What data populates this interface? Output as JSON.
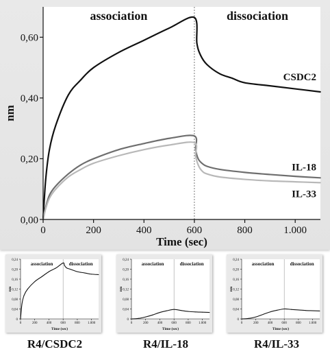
{
  "chart_data": [
    {
      "type": "line",
      "title": "",
      "xlabel": "Time (sec)",
      "ylabel": "nm",
      "xlim": [
        0,
        1100
      ],
      "ylim": [
        0,
        0.7
      ],
      "x_ticks": [
        {
          "value": 0,
          "label": "0"
        },
        {
          "value": 200,
          "label": "200"
        },
        {
          "value": 400,
          "label": "400"
        },
        {
          "value": 600,
          "label": "600"
        },
        {
          "value": 800,
          "label": "800"
        },
        {
          "value": 1000,
          "label": "1.000"
        }
      ],
      "y_ticks": [
        {
          "value": 0,
          "label": "0,00"
        },
        {
          "value": 0.2,
          "label": "0,20"
        },
        {
          "value": 0.4,
          "label": "0,40"
        },
        {
          "value": 0.6,
          "label": "0,60"
        }
      ],
      "phase_divider_x": 600,
      "phase_labels": [
        "association",
        "dissociation"
      ],
      "series": [
        {
          "name": "CSDC2",
          "color": "#111111",
          "x": [
            0,
            10,
            25,
            50,
            100,
            150,
            200,
            300,
            400,
            500,
            600,
            610,
            625,
            650,
            700,
            750,
            800,
            900,
            1000,
            1100
          ],
          "y": [
            0.0,
            0.13,
            0.23,
            0.31,
            0.41,
            0.46,
            0.5,
            0.55,
            0.59,
            0.63,
            0.665,
            0.58,
            0.54,
            0.51,
            0.48,
            0.465,
            0.45,
            0.44,
            0.43,
            0.42
          ]
        },
        {
          "name": "IL-18",
          "color": "#6e6e6e",
          "x": [
            0,
            10,
            25,
            50,
            100,
            150,
            200,
            300,
            400,
            500,
            600,
            605,
            615,
            630,
            650,
            700,
            800,
            900,
            1000,
            1100
          ],
          "y": [
            0.0,
            0.04,
            0.08,
            0.11,
            0.15,
            0.18,
            0.2,
            0.23,
            0.25,
            0.267,
            0.275,
            0.23,
            0.2,
            0.185,
            0.175,
            0.165,
            0.155,
            0.148,
            0.142,
            0.137
          ]
        },
        {
          "name": "IL-33",
          "color": "#b8b8b8",
          "x": [
            0,
            10,
            25,
            50,
            100,
            150,
            200,
            300,
            400,
            500,
            600,
            605,
            615,
            630,
            650,
            700,
            800,
            900,
            1000,
            1100
          ],
          "y": [
            0.0,
            0.035,
            0.07,
            0.1,
            0.14,
            0.165,
            0.185,
            0.21,
            0.23,
            0.245,
            0.253,
            0.21,
            0.18,
            0.16,
            0.15,
            0.14,
            0.132,
            0.127,
            0.124,
            0.121
          ]
        }
      ]
    },
    {
      "type": "line",
      "caption": "R4/CSDC2",
      "xlabel": "Time (sec)",
      "ylabel": "nm",
      "xlim": [
        0,
        1100
      ],
      "ylim": [
        0,
        0.24
      ],
      "x_ticks": [
        {
          "value": 0,
          "label": "0"
        },
        {
          "value": 200,
          "label": "200"
        },
        {
          "value": 400,
          "label": "400"
        },
        {
          "value": 600,
          "label": "600"
        },
        {
          "value": 800,
          "label": "800"
        },
        {
          "value": 1000,
          "label": "1.000"
        }
      ],
      "y_ticks": [
        {
          "value": 0,
          "label": "0"
        },
        {
          "value": 0.04,
          "label": "0,04"
        },
        {
          "value": 0.08,
          "label": "0,08"
        },
        {
          "value": 0.12,
          "label": "0,12"
        },
        {
          "value": 0.16,
          "label": "0,16"
        },
        {
          "value": 0.2,
          "label": "0,20"
        },
        {
          "value": 0.24,
          "label": "0,24"
        }
      ],
      "phase_divider_x": 600,
      "phase_labels": [
        "association",
        "dissociation"
      ],
      "series": [
        {
          "color": "#111111",
          "x": [
            0,
            20,
            50,
            100,
            200,
            300,
            400,
            500,
            600,
            620,
            650,
            700,
            800,
            900,
            1000,
            1100
          ],
          "y": [
            0.0,
            0.06,
            0.095,
            0.12,
            0.15,
            0.17,
            0.19,
            0.205,
            0.225,
            0.215,
            0.205,
            0.2,
            0.19,
            0.185,
            0.18,
            0.178
          ]
        }
      ]
    },
    {
      "type": "line",
      "caption": "R4/IL-18",
      "xlabel": "Time (sec)",
      "ylabel": "nm",
      "xlim": [
        0,
        1100
      ],
      "ylim": [
        0,
        0.24
      ],
      "x_ticks": [
        {
          "value": 0,
          "label": "0"
        },
        {
          "value": 200,
          "label": "200"
        },
        {
          "value": 400,
          "label": "400"
        },
        {
          "value": 600,
          "label": "600"
        },
        {
          "value": 800,
          "label": "800"
        },
        {
          "value": 1000,
          "label": "1.000"
        }
      ],
      "y_ticks": [
        {
          "value": 0,
          "label": "0"
        },
        {
          "value": 0.04,
          "label": "0,04"
        },
        {
          "value": 0.08,
          "label": "0,08"
        },
        {
          "value": 0.12,
          "label": "0,12"
        },
        {
          "value": 0.16,
          "label": "0,16"
        },
        {
          "value": 0.2,
          "label": "0,20"
        },
        {
          "value": 0.24,
          "label": "0,24"
        }
      ],
      "phase_divider_x": 600,
      "phase_labels": [
        "association",
        "dissociation"
      ],
      "series": [
        {
          "color": "#111111",
          "x": [
            0,
            100,
            200,
            300,
            400,
            500,
            600,
            700,
            800,
            900,
            1000,
            1100
          ],
          "y": [
            0.0,
            0.002,
            0.008,
            0.016,
            0.026,
            0.033,
            0.038,
            0.034,
            0.03,
            0.028,
            0.027,
            0.026
          ]
        }
      ]
    },
    {
      "type": "line",
      "caption": "R4/IL-33",
      "xlabel": "Time (sec)",
      "ylabel": "nm",
      "xlim": [
        0,
        1100
      ],
      "ylim": [
        0,
        0.24
      ],
      "x_ticks": [
        {
          "value": 0,
          "label": "0"
        },
        {
          "value": 200,
          "label": "200"
        },
        {
          "value": 400,
          "label": "400"
        },
        {
          "value": 600,
          "label": "600"
        },
        {
          "value": 800,
          "label": "800"
        },
        {
          "value": 1000,
          "label": "1.000"
        }
      ],
      "y_ticks": [
        {
          "value": 0,
          "label": "0"
        },
        {
          "value": 0.04,
          "label": "0,04"
        },
        {
          "value": 0.08,
          "label": "0,08"
        },
        {
          "value": 0.12,
          "label": "0,12"
        },
        {
          "value": 0.16,
          "label": "0,16"
        },
        {
          "value": 0.2,
          "label": "0,20"
        },
        {
          "value": 0.24,
          "label": "0,24"
        }
      ],
      "phase_divider_x": 600,
      "phase_labels": [
        "association",
        "dissociation"
      ],
      "series": [
        {
          "color": "#111111",
          "x": [
            0,
            100,
            200,
            300,
            400,
            500,
            600,
            700,
            800,
            900,
            1000,
            1100
          ],
          "y": [
            0.0,
            0.002,
            0.008,
            0.018,
            0.028,
            0.035,
            0.04,
            0.038,
            0.036,
            0.034,
            0.033,
            0.032
          ]
        }
      ]
    }
  ]
}
